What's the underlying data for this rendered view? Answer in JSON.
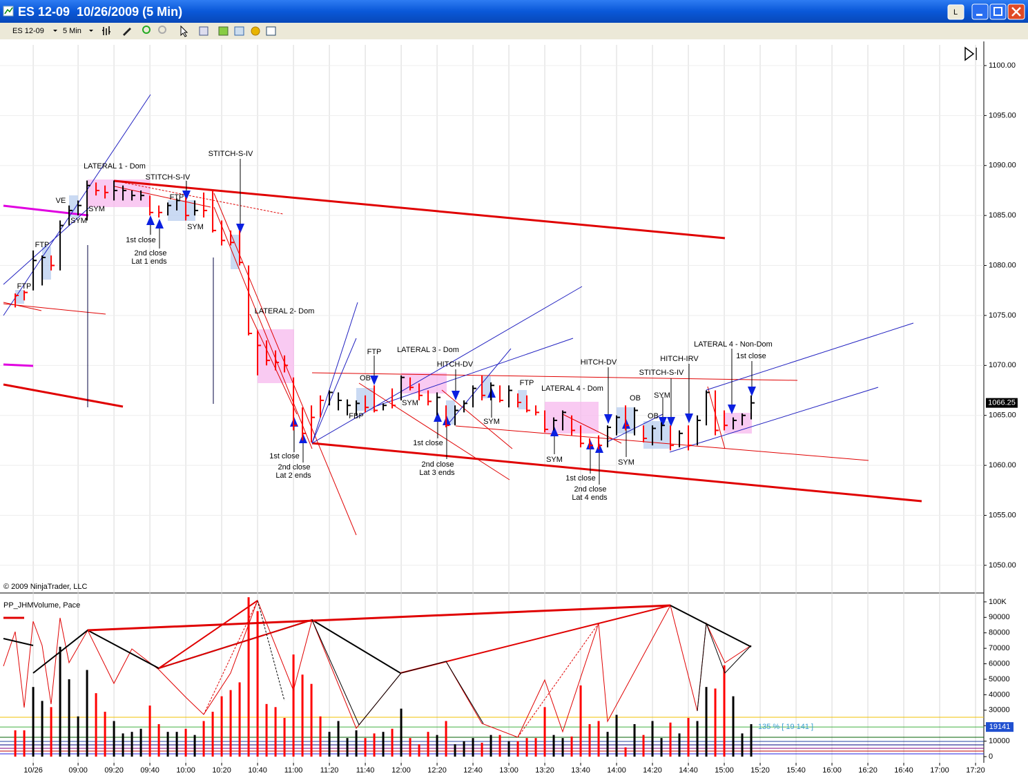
{
  "window": {
    "title": "ES 12-09  10/26/2009 (5 Min)",
    "button": "L",
    "instrument": "ES 12-09",
    "interval": "5 Min"
  },
  "chart_data": [
    {
      "type": "ohlc",
      "copyright": "© 2009 NinjaTrader, LLC",
      "x": [
        505,
        510,
        515,
        520,
        525,
        530,
        535,
        540,
        545,
        550,
        555,
        560,
        565,
        570,
        575,
        580,
        585,
        590,
        595,
        600,
        605,
        610,
        615,
        620,
        625,
        630,
        635,
        640,
        645,
        650,
        655,
        660,
        665,
        670,
        675,
        680,
        685,
        690,
        695,
        700,
        705,
        710,
        715,
        720,
        725,
        730,
        735,
        740,
        745,
        750,
        755,
        760,
        765,
        770,
        775,
        780,
        785,
        790,
        795,
        800,
        805,
        810,
        815,
        820,
        825,
        830,
        835,
        840,
        845,
        850,
        855,
        860,
        865,
        870,
        875,
        880,
        885,
        890,
        895,
        900,
        905,
        910,
        915
      ],
      "high": [
        1077.2,
        1077.5,
        1081.5,
        1081,
        1081,
        1084.5,
        1086,
        1086.5,
        1088.5,
        1088.3,
        1088,
        1088.5,
        1088,
        1087.5,
        1087.5,
        1087,
        1086,
        1086.3,
        1086.7,
        1086.8,
        1086.5,
        1087.3,
        1087.5,
        1084.5,
        1083.5,
        1083.5,
        1080,
        1073.5,
        1072.5,
        1071.5,
        1071,
        1068.8,
        1065.8,
        1066,
        1067,
        1067.5,
        1067.3,
        1066.6,
        1066.5,
        1067,
        1068,
        1066.2,
        1067.7,
        1069,
        1068.8,
        1068.2,
        1067.5,
        1067.3,
        1066,
        1066,
        1066.5,
        1068,
        1069,
        1068.3,
        1068,
        1068,
        1067.2,
        1067,
        1066,
        1065.5,
        1064.8,
        1065.5,
        1065,
        1064,
        1062.7,
        1063,
        1064,
        1065,
        1066,
        1065.8,
        1064,
        1064,
        1064.3,
        1064,
        1063.5,
        1064,
        1065,
        1067.5,
        1067.5,
        1065.5,
        1064.8,
        1065.2,
        1067
      ],
      "low": [
        1075.8,
        1076.5,
        1077.5,
        1078,
        1079.5,
        1079.5,
        1084,
        1085,
        1084.5,
        1087,
        1086.7,
        1086.5,
        1086.5,
        1086.5,
        1086.5,
        1085,
        1084.8,
        1085,
        1085.5,
        1084.5,
        1085,
        1084.8,
        1083.3,
        1082,
        1082,
        1080,
        1073,
        1069,
        1070,
        1069.5,
        1069.3,
        1063.5,
        1062.5,
        1062.3,
        1064.8,
        1066,
        1065.5,
        1065,
        1065,
        1065.3,
        1065.3,
        1065.5,
        1065.7,
        1066.5,
        1067.5,
        1066.5,
        1066,
        1065,
        1063.8,
        1064,
        1065.3,
        1065.8,
        1066.5,
        1066.5,
        1066.3,
        1065.8,
        1065.8,
        1065.3,
        1065,
        1063.3,
        1063.5,
        1063.5,
        1063,
        1061.8,
        1061.7,
        1061.6,
        1061.8,
        1063,
        1063.5,
        1063,
        1062.3,
        1062,
        1062.5,
        1061.5,
        1061.8,
        1061.5,
        1062,
        1064,
        1063,
        1063.5,
        1063.6,
        1064,
        1064.6
      ],
      "close": [
        1077,
        1077.3,
        1080.5,
        1080.8,
        1080,
        1084,
        1085.5,
        1086,
        1088,
        1087.5,
        1087.3,
        1087.5,
        1087.5,
        1087,
        1087,
        1085.3,
        1085.3,
        1086,
        1086.5,
        1085,
        1085.5,
        1085.5,
        1083.5,
        1082.5,
        1082.3,
        1080.3,
        1073.2,
        1072,
        1070.5,
        1070.3,
        1070,
        1064,
        1063.2,
        1064.8,
        1066.5,
        1067.3,
        1066.5,
        1066,
        1066.2,
        1065.8,
        1065.5,
        1066,
        1066,
        1068.8,
        1067.8,
        1067,
        1066.4,
        1066.8,
        1064,
        1065.5,
        1066.2,
        1067.7,
        1067,
        1068,
        1066.5,
        1067.5,
        1066.3,
        1065.5,
        1065.3,
        1063.6,
        1064.5,
        1065.3,
        1063.5,
        1062.2,
        1062,
        1062,
        1063.8,
        1064.8,
        1064,
        1065.5,
        1062.7,
        1063.7,
        1064,
        1062,
        1063.2,
        1062,
        1064.5,
        1067.3,
        1063.5,
        1064,
        1064.5,
        1065,
        1066.25
      ],
      "colors": [
        "red",
        "red",
        "black",
        "black",
        "red",
        "black",
        "black",
        "black",
        "black",
        "red",
        "red",
        "black",
        "black",
        "black",
        "black",
        "red",
        "red",
        "black",
        "black",
        "red",
        "black",
        "red",
        "red",
        "red",
        "red",
        "red",
        "red",
        "red",
        "red",
        "red",
        "red",
        "red",
        "red",
        "red",
        "red",
        "black",
        "black",
        "black",
        "black",
        "red",
        "red",
        "black",
        "red",
        "black",
        "red",
        "red",
        "red",
        "black",
        "red",
        "black",
        "black",
        "black",
        "red",
        "black",
        "red",
        "black",
        "red",
        "red",
        "red",
        "red",
        "black",
        "black",
        "red",
        "red",
        "red",
        "red",
        "black",
        "black",
        "red",
        "black",
        "red",
        "black",
        "black",
        "red",
        "black",
        "red",
        "black",
        "black",
        "red",
        "red",
        "black",
        "black",
        "black"
      ],
      "xlim": [
        496.5,
        1044.6
      ],
      "ylim": [
        1047.3,
        1102.07
      ],
      "yticks": [
        {
          "value": 1050,
          "label": "1050.00"
        },
        {
          "value": 1055,
          "label": "1055.00"
        },
        {
          "value": 1060,
          "label": "1060.00"
        },
        {
          "value": 1065,
          "label": "1065.00"
        },
        {
          "value": 1070,
          "label": "1070.00"
        },
        {
          "value": 1075,
          "label": "1075.00"
        },
        {
          "value": 1080,
          "label": "1080.00"
        },
        {
          "value": 1085,
          "label": "1085.00"
        },
        {
          "value": 1090,
          "label": "1090.00"
        },
        {
          "value": 1095,
          "label": "1095.00"
        },
        {
          "value": 1100,
          "label": "1100.00"
        }
      ],
      "last_price": 1066.25,
      "annotations": [
        "LATERAL 1 - Dom",
        "STITCH-S-IV",
        "STITCH-S-IV",
        "VE",
        "FTP",
        "FTP",
        "SYM",
        "SYM",
        "FTP",
        "SYM",
        "1st close",
        "2nd close",
        "Lat 1 ends",
        "LATERAL 2- Dom",
        "1st close",
        "2nd close",
        "Lat 2 ends",
        "FTP",
        "OB",
        "FBP",
        "LATERAL 3 - Dom",
        "HITCH-DV",
        "SYM",
        "FTP",
        "SYM",
        "1st close",
        "2nd close",
        "Lat 3 ends",
        "LATERAL 4 - Dom",
        "HITCH-DV",
        "STITCH-S-IV",
        "HITCH-IRV",
        "SYM",
        "SYM",
        "OB",
        "OB",
        "SYM",
        "1st close",
        "2nd close",
        "Lat 4 ends",
        "LATERAL 4 - Non-Dom",
        "1st close"
      ]
    },
    {
      "type": "bar",
      "title": "PP_JHMVolume, Pace",
      "x": [
        505,
        510,
        515,
        520,
        525,
        530,
        535,
        540,
        545,
        550,
        555,
        560,
        565,
        570,
        575,
        580,
        585,
        590,
        595,
        600,
        605,
        610,
        615,
        620,
        625,
        630,
        635,
        640,
        645,
        650,
        655,
        660,
        665,
        670,
        675,
        680,
        685,
        690,
        695,
        700,
        705,
        710,
        715,
        720,
        725,
        730,
        735,
        740,
        745,
        750,
        755,
        760,
        765,
        770,
        775,
        780,
        785,
        790,
        795,
        800,
        805,
        810,
        815,
        820,
        825,
        830,
        835,
        840,
        845,
        850,
        855,
        860,
        865,
        870,
        875,
        880,
        885,
        890,
        895,
        900,
        905,
        910,
        915
      ],
      "values": [
        17000,
        17000,
        45000,
        36000,
        32000,
        71000,
        50000,
        26000,
        56000,
        41000,
        29000,
        23000,
        15000,
        16000,
        18000,
        33000,
        21000,
        16000,
        16000,
        18000,
        14000,
        23000,
        29000,
        39000,
        43000,
        48000,
        103000,
        94000,
        34000,
        32000,
        25000,
        66000,
        53000,
        47000,
        26000,
        16000,
        23000,
        12000,
        17000,
        12000,
        15000,
        16000,
        18000,
        31000,
        12000,
        8000,
        16000,
        14000,
        23000,
        8000,
        10000,
        12000,
        9000,
        14000,
        14000,
        10000,
        10000,
        12000,
        12000,
        32000,
        14000,
        12000,
        13000,
        46000,
        21000,
        23000,
        16000,
        27000,
        6000,
        21000,
        14000,
        23000,
        12000,
        22000,
        15000,
        25000,
        23000,
        45000,
        44000,
        59000,
        39000,
        15000,
        21000
      ],
      "colors": [
        "red",
        "red",
        "black",
        "black",
        "red",
        "black",
        "black",
        "black",
        "black",
        "red",
        "red",
        "black",
        "black",
        "black",
        "black",
        "red",
        "red",
        "black",
        "black",
        "red",
        "black",
        "red",
        "red",
        "red",
        "red",
        "red",
        "red",
        "red",
        "red",
        "red",
        "red",
        "red",
        "red",
        "red",
        "red",
        "black",
        "black",
        "black",
        "black",
        "red",
        "red",
        "black",
        "red",
        "black",
        "red",
        "red",
        "red",
        "black",
        "red",
        "black",
        "black",
        "black",
        "red",
        "black",
        "red",
        "black",
        "red",
        "red",
        "red",
        "red",
        "black",
        "black",
        "red",
        "red",
        "red",
        "red",
        "black",
        "black",
        "red",
        "black",
        "red",
        "black",
        "black",
        "red",
        "black",
        "red",
        "black",
        "black",
        "red",
        "red",
        "black",
        "black",
        "black"
      ],
      "xlim": [
        496.5,
        1044.6
      ],
      "ylim": [
        -4000,
        105300
      ],
      "yticks": [
        0,
        10000,
        20000,
        30000,
        40000,
        50000,
        60000,
        70000,
        80000,
        90000,
        {
          "value": 100000,
          "label": "100K"
        }
      ],
      "xticks": [
        {
          "value": 515,
          "label": "10/26"
        },
        {
          "value": 540,
          "label": "09:00"
        },
        {
          "value": 560,
          "label": "09:20"
        },
        {
          "value": 580,
          "label": "09:40"
        },
        {
          "value": 600,
          "label": "10:00"
        },
        {
          "value": 620,
          "label": "10:20"
        },
        {
          "value": 640,
          "label": "10:40"
        },
        {
          "value": 660,
          "label": "11:00"
        },
        {
          "value": 680,
          "label": "11:20"
        },
        {
          "value": 700,
          "label": "11:40"
        },
        {
          "value": 720,
          "label": "12:00"
        },
        {
          "value": 740,
          "label": "12:20"
        },
        {
          "value": 760,
          "label": "12:40"
        },
        {
          "value": 780,
          "label": "13:00"
        },
        {
          "value": 800,
          "label": "13:20"
        },
        {
          "value": 820,
          "label": "13:40"
        },
        {
          "value": 840,
          "label": "14:00"
        },
        {
          "value": 860,
          "label": "14:20"
        },
        {
          "value": 880,
          "label": "14:40"
        },
        {
          "value": 900,
          "label": "15:00"
        },
        {
          "value": 920,
          "label": "15:20"
        },
        {
          "value": 940,
          "label": "15:40"
        },
        {
          "value": 960,
          "label": "16:00"
        },
        {
          "value": 980,
          "label": "16:20"
        },
        {
          "value": 1000,
          "label": "16:40"
        },
        {
          "value": 1020,
          "label": "17:00"
        },
        {
          "value": 1040,
          "label": "17:20"
        }
      ],
      "level": 19141,
      "level_label": "135 % [ 19 141 ]"
    }
  ]
}
